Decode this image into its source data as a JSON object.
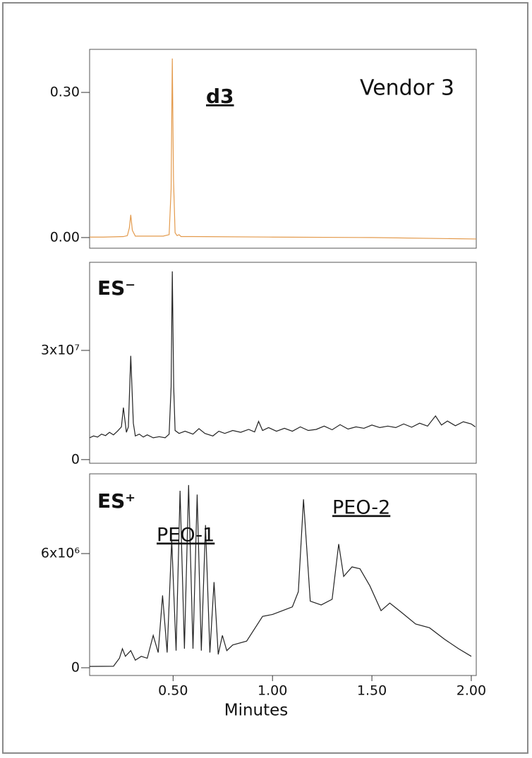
{
  "chart_data": [
    {
      "type": "line",
      "label": "d3",
      "annotations": [
        "Vendor 3"
      ],
      "color": "#e39a4c",
      "x": [
        0.08,
        0.15,
        0.25,
        0.27,
        0.28,
        0.287,
        0.295,
        0.31,
        0.45,
        0.48,
        0.49,
        0.496,
        0.502,
        0.51,
        0.52,
        0.53,
        0.54,
        0.6,
        1.0,
        1.5,
        2.025
      ],
      "values": [
        0.001,
        0.001,
        0.002,
        0.004,
        0.02,
        0.047,
        0.015,
        0.003,
        0.003,
        0.006,
        0.1,
        0.37,
        0.12,
        0.01,
        0.004,
        0.006,
        0.002,
        0.002,
        0.001,
        0.0,
        -0.003
      ],
      "xlim": [
        0.08,
        2.025
      ],
      "ylim": [
        -0.022,
        0.389
      ],
      "yticks": [
        {
          "value": 0,
          "label": "0.00"
        },
        {
          "value": 0.3,
          "label": "0.30"
        }
      ]
    },
    {
      "type": "line",
      "label": "ES⁻",
      "color": "#222222",
      "x": [
        0.08,
        0.1,
        0.12,
        0.14,
        0.16,
        0.18,
        0.2,
        0.22,
        0.24,
        0.25,
        0.265,
        0.275,
        0.287,
        0.3,
        0.31,
        0.33,
        0.35,
        0.37,
        0.4,
        0.43,
        0.46,
        0.48,
        0.49,
        0.496,
        0.503,
        0.51,
        0.53,
        0.56,
        0.6,
        0.63,
        0.66,
        0.7,
        0.73,
        0.76,
        0.8,
        0.84,
        0.88,
        0.91,
        0.93,
        0.95,
        0.98,
        1.02,
        1.06,
        1.1,
        1.14,
        1.18,
        1.22,
        1.26,
        1.3,
        1.34,
        1.38,
        1.42,
        1.46,
        1.5,
        1.54,
        1.58,
        1.62,
        1.66,
        1.7,
        1.74,
        1.78,
        1.82,
        1.85,
        1.88,
        1.92,
        1.96,
        2.0,
        2.02
      ],
      "values": [
        6000000.0,
        6500000.0,
        6200000.0,
        7000000.0,
        6600000.0,
        7500000.0,
        6800000.0,
        7800000.0,
        9000000.0,
        14300000.0,
        7500000.0,
        9000000.0,
        28500000.0,
        10000000.0,
        6500000.0,
        7000000.0,
        6200000.0,
        6800000.0,
        6000000.0,
        6300000.0,
        6000000.0,
        7000000.0,
        20000000.0,
        51700000.0,
        20000000.0,
        8000000.0,
        7200000.0,
        7800000.0,
        7000000.0,
        8500000.0,
        7200000.0,
        6500000.0,
        7800000.0,
        7200000.0,
        8000000.0,
        7500000.0,
        8300000.0,
        7600000.0,
        10500000.0,
        8000000.0,
        8800000.0,
        7800000.0,
        8600000.0,
        7800000.0,
        9000000.0,
        8000000.0,
        8300000.0,
        9200000.0,
        8200000.0,
        9600000.0,
        8400000.0,
        9000000.0,
        8600000.0,
        9500000.0,
        8800000.0,
        9200000.0,
        8800000.0,
        9800000.0,
        8900000.0,
        10000000.0,
        9200000.0,
        12000000.0,
        9500000.0,
        10600000.0,
        9300000.0,
        10400000.0,
        9800000.0,
        9000000.0
      ],
      "xlim": [
        0.08,
        2.025
      ],
      "ylim": [
        -1000000,
        54200000
      ],
      "yticks": [
        0,
        {
          "value": 30000000,
          "label": "3x10⁷"
        }
      ]
    },
    {
      "type": "line",
      "label": "ES⁺",
      "annotations": [
        "PEO-1",
        "PEO-2"
      ],
      "annotation_color": "#d7262f",
      "color": "#222222",
      "x": [
        0.08,
        0.2,
        0.23,
        0.245,
        0.26,
        0.287,
        0.31,
        0.34,
        0.37,
        0.4,
        0.425,
        0.447,
        0.47,
        0.493,
        0.515,
        0.535,
        0.557,
        0.578,
        0.6,
        0.621,
        0.642,
        0.663,
        0.685,
        0.706,
        0.727,
        0.748,
        0.77,
        0.8,
        0.87,
        0.95,
        1.0,
        1.05,
        1.1,
        1.13,
        1.156,
        1.19,
        1.245,
        1.3,
        1.333,
        1.358,
        1.4,
        1.44,
        1.49,
        1.546,
        1.59,
        1.65,
        1.72,
        1.79,
        1.865,
        1.936,
        2.0
      ],
      "values": [
        70000.0,
        80000.0,
        500000.0,
        1000000.0,
        600000.0,
        900000.0,
        400000.0,
        600000.0,
        500000.0,
        1700000.0,
        800000.0,
        3800000.0,
        800000.0,
        6700000.0,
        900000.0,
        9300000.0,
        1000000.0,
        9600000.0,
        1000000.0,
        9100000.0,
        900000.0,
        7500000.0,
        800000.0,
        4500000.0,
        700000.0,
        1700000.0,
        900000.0,
        1200000.0,
        1400000.0,
        2700000.0,
        2800000.0,
        3000000.0,
        3200000.0,
        4000000.0,
        8850000.0,
        3500000.0,
        3300000.0,
        3600000.0,
        6500000.0,
        4800000.0,
        5300000.0,
        5200000.0,
        4300000.0,
        3000000.0,
        3400000.0,
        2900000.0,
        2300000.0,
        2100000.0,
        1500000.0,
        1000000.0,
        600000.0
      ],
      "xlim": [
        0.08,
        2.025
      ],
      "ylim": [
        -407000,
        10190000
      ],
      "yticks": [
        0,
        {
          "value": 6000000,
          "label": "6x10⁶"
        }
      ],
      "xticks": [
        {
          "value": 0.5,
          "label": "0.50"
        },
        {
          "value": 1,
          "label": "1.00"
        },
        {
          "value": 1.5,
          "label": "1.50"
        },
        {
          "value": 2,
          "label": "2.00"
        }
      ],
      "xlabel": "Minutes"
    }
  ]
}
